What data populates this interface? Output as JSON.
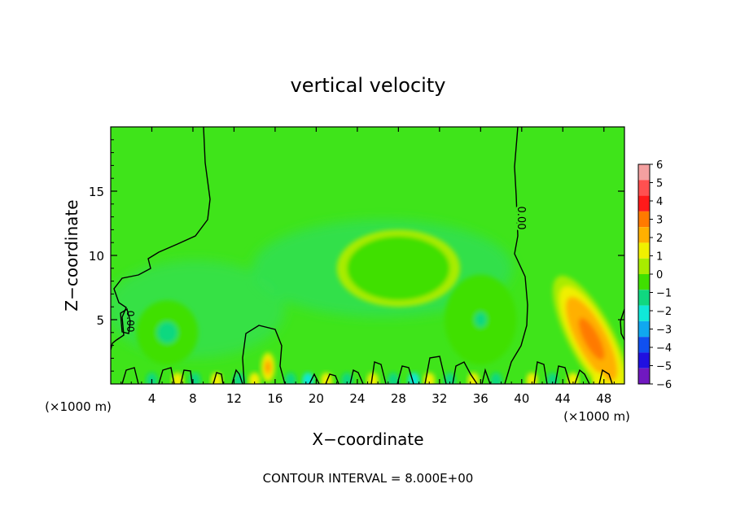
{
  "chart_data": {
    "type": "heatmap",
    "title": "vertical velocity",
    "xlabel": "X−coordinate",
    "ylabel": "Z−coordinate",
    "x_unit_left": "(×1000 m)",
    "x_unit_right": "(×1000 m)",
    "xlim": [
      0,
      50
    ],
    "ylim": [
      0,
      20
    ],
    "x_ticks": [
      4,
      8,
      12,
      16,
      20,
      24,
      28,
      32,
      36,
      40,
      44,
      48
    ],
    "y_ticks": [
      5,
      10,
      15
    ],
    "contour_interval_text": "CONTOUR INTERVAL = 8.000E+00",
    "contour_label": "0.00",
    "colorbar": {
      "levels": [
        6,
        5,
        4,
        3,
        2,
        1,
        0,
        -1,
        -2,
        -3,
        -4,
        -5,
        -6
      ],
      "level_labels": [
        "6",
        "5",
        "4",
        "3",
        "2",
        "1",
        "0",
        "−1",
        "−2",
        "−3",
        "−4",
        "−5",
        "−6"
      ],
      "colors": [
        "#f4a0a0",
        "#ff5050",
        "#ff1a1a",
        "#ff7a00",
        "#ffb000",
        "#f0f000",
        "#a8ec00",
        "#40e000",
        "#10d880",
        "#10e8d8",
        "#10a8f0",
        "#1050f0",
        "#2010e0",
        "#7018c0"
      ]
    },
    "background_value": 0.2,
    "features": [
      {
        "x": 46.8,
        "z": 3.5,
        "rx": 2.2,
        "rz": 5.5,
        "value": 4.0,
        "kind": "updraft"
      },
      {
        "x": 15.3,
        "z": 1.3,
        "rx": 0.7,
        "rz": 1.2,
        "value": 3.2,
        "kind": "updraft"
      },
      {
        "x": 5.5,
        "z": 4.0,
        "rx": 3.0,
        "rz": 2.5,
        "value": -1.5,
        "kind": "downdraft"
      },
      {
        "x": 36.0,
        "z": 5.0,
        "rx": 3.5,
        "rz": 3.5,
        "value": -1.2,
        "kind": "downdraft"
      },
      {
        "x": 28.0,
        "z": 9.0,
        "rx": 6.0,
        "rz": 3.0,
        "value": -0.6,
        "kind": "downdraft"
      }
    ]
  }
}
